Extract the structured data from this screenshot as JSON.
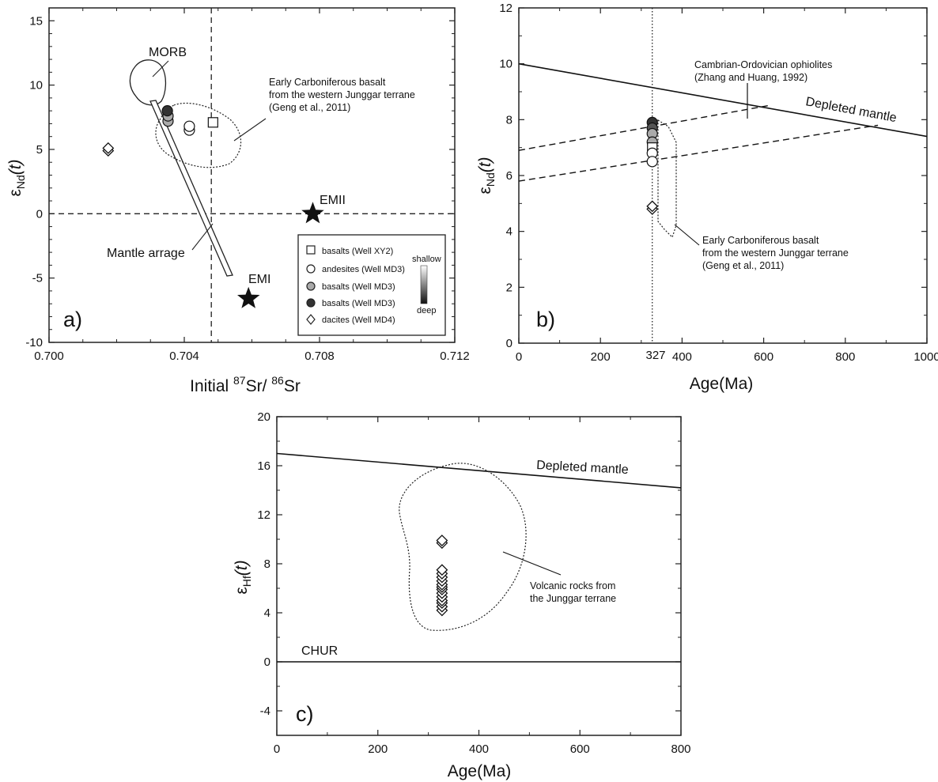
{
  "chart_data": [
    {
      "panel": "a)",
      "type": "scatter",
      "xlabel_prefix": "Initial ",
      "xlabel_sup1": "87",
      "xlabel_mid": "Sr/ ",
      "xlabel_sup2": "86",
      "xlabel_suffix": "Sr",
      "ylabel_main": "ε",
      "ylabel_sub": "Nd",
      "ylabel_suffix": "(t)",
      "xlim": [
        0.7,
        0.712
      ],
      "ylim": [
        -10,
        16
      ],
      "xticks": [
        "0.700",
        "0.704",
        "0.708",
        "0.712"
      ],
      "yticks": [
        "-10",
        "-5",
        "0",
        "5",
        "10",
        "15"
      ],
      "reference_lines": {
        "x": 0.7048,
        "y": 0
      },
      "series": [
        {
          "name": "basalts (Well XY2)",
          "marker": "square",
          "color": "#ffffff",
          "points": [
            [
              0.70485,
              7.1
            ]
          ]
        },
        {
          "name": "andesites (Well MD3)",
          "marker": "circle",
          "color": "#ffffff",
          "points": [
            [
              0.70415,
              6.5
            ],
            [
              0.70415,
              6.8
            ]
          ]
        },
        {
          "name": "basalts (Well MD3)",
          "marker": "circle",
          "color": "#aaaaaa",
          "points": [
            [
              0.70352,
              7.2
            ],
            [
              0.70352,
              7.6
            ]
          ]
        },
        {
          "name": "basalts (Well MD3)",
          "marker": "circle",
          "color": "#333333",
          "points": [
            [
              0.7035,
              8.0
            ]
          ]
        },
        {
          "name": "dacites (Well MD4)",
          "marker": "diamond",
          "color": "#ffffff",
          "points": [
            [
              0.70175,
              4.9
            ],
            [
              0.70175,
              5.1
            ]
          ]
        }
      ],
      "endmembers": [
        {
          "label": "EMII",
          "x": 0.7078,
          "y": 0.0
        },
        {
          "label": "EMI",
          "x": 0.7059,
          "y": -6.6
        }
      ],
      "fields": [
        {
          "label": "MORB"
        },
        {
          "label": "Mantle arrage"
        },
        {
          "label": "Early Carboniferous basalt",
          "label2": "from the western Junggar terrane",
          "label3": "(Geng et al., 2011)"
        }
      ],
      "gradient_top": "shallow",
      "gradient_bottom": "deep"
    },
    {
      "panel": "b)",
      "type": "scatter",
      "xlabel": "Age(Ma)",
      "ylabel_main": "ε",
      "ylabel_sub": "Nd",
      "ylabel_suffix": "(t)",
      "xlim": [
        0,
        1000
      ],
      "ylim": [
        0,
        12
      ],
      "xticks": [
        "0",
        "200",
        "400",
        "600",
        "800",
        "1000"
      ],
      "yticks": [
        "0",
        "2",
        "4",
        "6",
        "8",
        "10",
        "12"
      ],
      "marker_line_label": "327",
      "marker_line_x": 327,
      "depleted_mantle": {
        "label": "Depleted mantle",
        "points": [
          [
            0,
            10.0
          ],
          [
            1000,
            7.4
          ]
        ]
      },
      "evolution_lines": [
        {
          "points": [
            [
              0,
              6.9
            ],
            [
              610,
              8.5
            ]
          ]
        },
        {
          "points": [
            [
              0,
              5.8
            ],
            [
              880,
              7.8
            ]
          ]
        }
      ],
      "points": [
        {
          "marker": "circle",
          "color": "#333333",
          "y": 7.9
        },
        {
          "marker": "circle",
          "color": "#555555",
          "y": 7.7
        },
        {
          "marker": "circle",
          "color": "#aaaaaa",
          "y": 7.5
        },
        {
          "marker": "circle",
          "color": "#aaaaaa",
          "y": 7.2
        },
        {
          "marker": "square",
          "color": "#ffffff",
          "y": 7.0
        },
        {
          "marker": "circle",
          "color": "#ffffff",
          "y": 6.8
        },
        {
          "marker": "circle",
          "color": "#ffffff",
          "y": 6.5
        },
        {
          "marker": "diamond",
          "color": "#ffffff",
          "y": 4.8
        },
        {
          "marker": "diamond",
          "color": "#ffffff",
          "y": 4.9
        }
      ],
      "annotations": [
        {
          "line1": "Cambrian-Ordovician ophiolites",
          "line2": "(Zhang and Huang, 1992)"
        },
        {
          "line1": "Early Carboniferous basalt",
          "line2": "from the western Junggar terrane",
          "line3": "(Geng et al., 2011)"
        }
      ]
    },
    {
      "panel": "c)",
      "type": "scatter",
      "xlabel": "Age(Ma)",
      "ylabel_main": "ε",
      "ylabel_sub": "Hf",
      "ylabel_suffix": "(t)",
      "xlim": [
        0,
        800
      ],
      "ylim": [
        -6,
        20
      ],
      "xticks": [
        "0",
        "200",
        "400",
        "600",
        "800"
      ],
      "yticks": [
        "-4",
        "0",
        "4",
        "8",
        "12",
        "16",
        "20"
      ],
      "depleted_mantle": {
        "label": "Depleted mantle",
        "points": [
          [
            0,
            17.0
          ],
          [
            800,
            14.2
          ]
        ]
      },
      "chur": {
        "label": "CHUR",
        "y": 0
      },
      "points_x": 327,
      "points_y": [
        4.2,
        4.5,
        4.8,
        5.0,
        5.3,
        5.6,
        5.9,
        6.1,
        6.3,
        6.6,
        6.9,
        7.2,
        7.5,
        9.7,
        9.9
      ],
      "annotation": {
        "line1": "Volcanic rocks from",
        "line2": "the Junggar terrane"
      }
    }
  ]
}
